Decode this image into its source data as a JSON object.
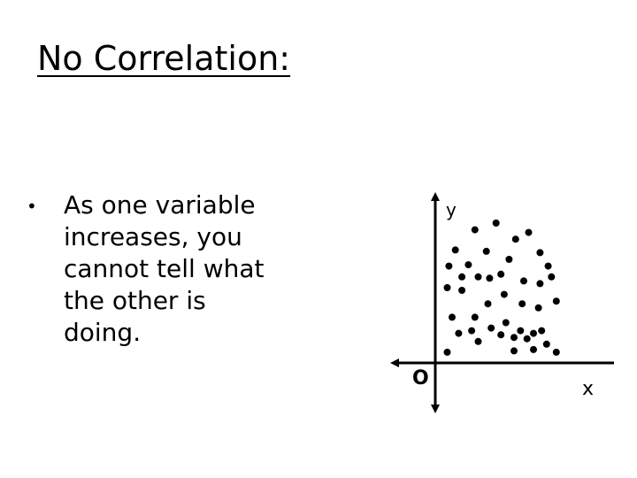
{
  "slide": {
    "title": "No Correlation:",
    "bullet_symbol": "•",
    "bullet_text": "As one variable\nincreases, you\ncannot tell what\nthe other is\ndoing."
  },
  "chart_data": {
    "type": "scatter",
    "title": "",
    "xlabel": "x",
    "ylabel": "y",
    "origin_label": "O",
    "grid": false,
    "xlim": [
      0,
      100
    ],
    "ylim": [
      0,
      100
    ],
    "points": [
      [
        8,
        80
      ],
      [
        20,
        95
      ],
      [
        33,
        100
      ],
      [
        45,
        88
      ],
      [
        16,
        69
      ],
      [
        27,
        79
      ],
      [
        41,
        73
      ],
      [
        53,
        93
      ],
      [
        60,
        78
      ],
      [
        65,
        68
      ],
      [
        4,
        68
      ],
      [
        12,
        60
      ],
      [
        22,
        60
      ],
      [
        36,
        62
      ],
      [
        50,
        57
      ],
      [
        60,
        55
      ],
      [
        70,
        42
      ],
      [
        3,
        52
      ],
      [
        12,
        50
      ],
      [
        28,
        40
      ],
      [
        38,
        47
      ],
      [
        49,
        40
      ],
      [
        59,
        37
      ],
      [
        6,
        30
      ],
      [
        20,
        30
      ],
      [
        30,
        22
      ],
      [
        39,
        26
      ],
      [
        48,
        20
      ],
      [
        56,
        18
      ],
      [
        10,
        18
      ],
      [
        22,
        12
      ],
      [
        36,
        17
      ],
      [
        44,
        15
      ],
      [
        52,
        14
      ],
      [
        61,
        20
      ],
      [
        64,
        10
      ],
      [
        3,
        4
      ],
      [
        70,
        4
      ],
      [
        44,
        5
      ],
      [
        56,
        6
      ],
      [
        67,
        60
      ],
      [
        29,
        59
      ],
      [
        18,
        20
      ]
    ],
    "point_color": "#000000"
  }
}
